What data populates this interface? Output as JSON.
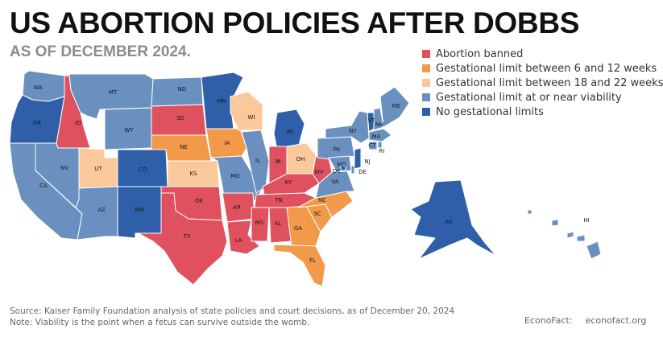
{
  "title": "US ABORTION POLICIES AFTER DOBBS",
  "subtitle": "AS OF DECEMBER 2024.",
  "categories": {
    "banned": {
      "label": "Abortion banned",
      "color": "#e0515f"
    },
    "limit_6_12": {
      "label": "Gestational limit between 6 and 12 weeks",
      "color": "#f2994a"
    },
    "limit_18_22": {
      "label": "Gestational limit between 18 and 22 weeks",
      "color": "#f9c99b"
    },
    "viability": {
      "label": "Gestational limit at or near viability",
      "color": "#6a90bf"
    },
    "none": {
      "label": "No gestational limits",
      "color": "#2f5fa8"
    }
  },
  "legend": [
    {
      "key": "banned",
      "label": "Abortion banned",
      "color": "#e0515f"
    },
    {
      "key": "limit_6_12",
      "label": "Gestational limit between 6 and 12 weeks",
      "color": "#f2994a"
    },
    {
      "key": "limit_18_22",
      "label": "Gestational limit between 18 and 22 weeks",
      "color": "#f9c99b"
    },
    {
      "key": "viability",
      "label": "Gestational limit at or near viability",
      "color": "#6a90bf"
    },
    {
      "key": "none",
      "label": "No gestational limits",
      "color": "#2f5fa8"
    }
  ],
  "states": [
    {
      "abbr": "WA",
      "category": "viability"
    },
    {
      "abbr": "OR",
      "category": "none"
    },
    {
      "abbr": "CA",
      "category": "viability"
    },
    {
      "abbr": "ID",
      "category": "banned"
    },
    {
      "abbr": "NV",
      "category": "viability"
    },
    {
      "abbr": "MT",
      "category": "viability"
    },
    {
      "abbr": "WY",
      "category": "viability"
    },
    {
      "abbr": "UT",
      "category": "limit_18_22"
    },
    {
      "abbr": "AZ",
      "category": "viability"
    },
    {
      "abbr": "CO",
      "category": "none"
    },
    {
      "abbr": "NM",
      "category": "none"
    },
    {
      "abbr": "ND",
      "category": "viability"
    },
    {
      "abbr": "SD",
      "category": "banned"
    },
    {
      "abbr": "NE",
      "category": "limit_6_12"
    },
    {
      "abbr": "KS",
      "category": "limit_18_22"
    },
    {
      "abbr": "OK",
      "category": "banned"
    },
    {
      "abbr": "TX",
      "category": "banned"
    },
    {
      "abbr": "MN",
      "category": "none"
    },
    {
      "abbr": "IA",
      "category": "limit_6_12"
    },
    {
      "abbr": "MO",
      "category": "viability"
    },
    {
      "abbr": "AR",
      "category": "banned"
    },
    {
      "abbr": "LA",
      "category": "banned"
    },
    {
      "abbr": "WI",
      "category": "limit_18_22"
    },
    {
      "abbr": "IL",
      "category": "viability"
    },
    {
      "abbr": "MI",
      "category": "none"
    },
    {
      "abbr": "IN",
      "category": "banned"
    },
    {
      "abbr": "OH",
      "category": "limit_18_22"
    },
    {
      "abbr": "KY",
      "category": "banned"
    },
    {
      "abbr": "TN",
      "category": "banned"
    },
    {
      "abbr": "MS",
      "category": "banned"
    },
    {
      "abbr": "AL",
      "category": "banned"
    },
    {
      "abbr": "GA",
      "category": "limit_6_12"
    },
    {
      "abbr": "FL",
      "category": "limit_6_12"
    },
    {
      "abbr": "SC",
      "category": "limit_6_12"
    },
    {
      "abbr": "NC",
      "category": "limit_6_12"
    },
    {
      "abbr": "VA",
      "category": "viability"
    },
    {
      "abbr": "WV",
      "category": "banned"
    },
    {
      "abbr": "PA",
      "category": "viability"
    },
    {
      "abbr": "NY",
      "category": "viability"
    },
    {
      "abbr": "VT",
      "category": "none"
    },
    {
      "abbr": "NH",
      "category": "viability"
    },
    {
      "abbr": "ME",
      "category": "viability"
    },
    {
      "abbr": "MA",
      "category": "viability"
    },
    {
      "abbr": "CT",
      "category": "viability"
    },
    {
      "abbr": "RI",
      "category": "viability"
    },
    {
      "abbr": "NJ",
      "category": "none"
    },
    {
      "abbr": "DE",
      "category": "viability"
    },
    {
      "abbr": "MD",
      "category": "viability"
    },
    {
      "abbr": "DC",
      "category": "none"
    },
    {
      "abbr": "AK",
      "category": "none"
    },
    {
      "abbr": "HI",
      "category": "viability"
    }
  ],
  "footer": {
    "source": "Source: Kaiser Family Foundation analysis of state policies and court decisions, as of December 20, 2024",
    "note": "Note: Viability is the point when a fetus can survive outside the womb."
  },
  "brand": {
    "name": "EconoFact:",
    "url": "econofact.org"
  }
}
